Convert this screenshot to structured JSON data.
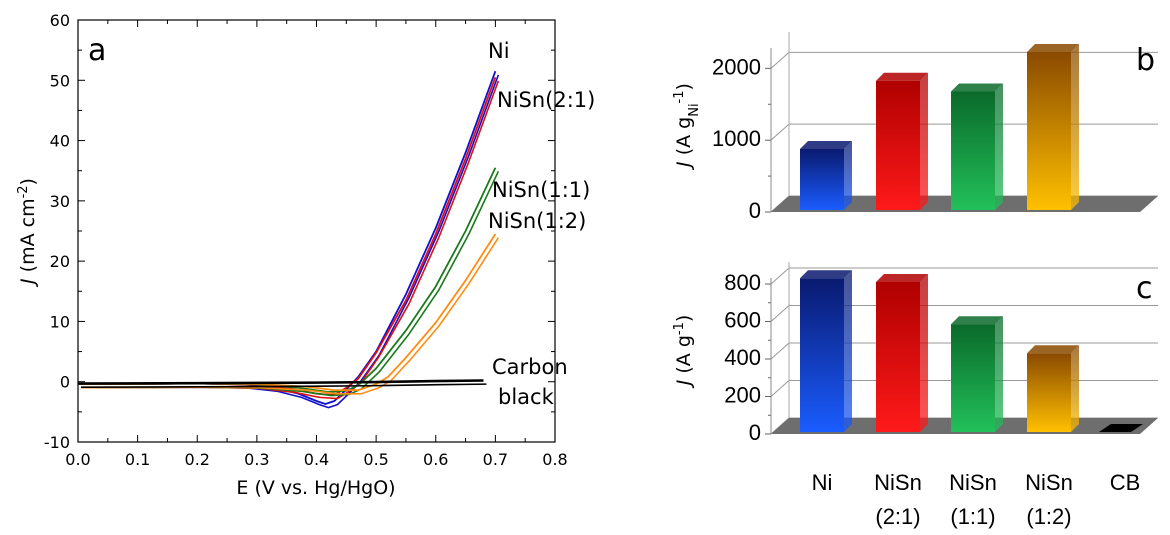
{
  "chart_data": [
    {
      "type": "line",
      "panel_label": "a",
      "xlabel": "E (V vs. Hg/HgO)",
      "ylabel": "J (mA cm-2)",
      "ylabel_italic": "J",
      "ylabel_rest": " (mA cm",
      "ylabel_sup": "-2",
      "ylabel_close": ")",
      "xlim": [
        0.0,
        0.8
      ],
      "ylim": [
        -10,
        60
      ],
      "xticks": [
        "0.0",
        "0.1",
        "0.2",
        "0.3",
        "0.4",
        "0.5",
        "0.6",
        "0.7",
        "0.8"
      ],
      "yticks": [
        "-10",
        "0",
        "10",
        "20",
        "30",
        "40",
        "50",
        "60"
      ],
      "series": [
        {
          "name": "Ni",
          "color": "#1010d0",
          "points": [
            [
              0.0,
              -0.4
            ],
            [
              0.1,
              -0.35
            ],
            [
              0.2,
              -0.3
            ],
            [
              0.28,
              -0.45
            ],
            [
              0.33,
              -1.0
            ],
            [
              0.37,
              -2.0
            ],
            [
              0.4,
              -3.2
            ],
            [
              0.415,
              -3.7
            ],
            [
              0.43,
              -3.2
            ],
            [
              0.45,
              -1.3
            ],
            [
              0.47,
              0.8
            ],
            [
              0.5,
              5.0
            ],
            [
              0.55,
              14.5
            ],
            [
              0.6,
              25.5
            ],
            [
              0.65,
              38.0
            ],
            [
              0.7,
              51.5
            ]
          ]
        },
        {
          "name": "NiSn(2:1)",
          "color": "#e01010",
          "points": [
            [
              0.0,
              -0.4
            ],
            [
              0.1,
              -0.35
            ],
            [
              0.2,
              -0.3
            ],
            [
              0.3,
              -0.5
            ],
            [
              0.36,
              -1.2
            ],
            [
              0.4,
              -2.0
            ],
            [
              0.43,
              -2.2
            ],
            [
              0.45,
              -1.0
            ],
            [
              0.47,
              0.5
            ],
            [
              0.5,
              4.8
            ],
            [
              0.55,
              13.5
            ],
            [
              0.6,
              24.5
            ],
            [
              0.65,
              37.0
            ],
            [
              0.7,
              50.5
            ]
          ]
        },
        {
          "name": "NiSn(1:1)",
          "color": "#1a7a1a",
          "points": [
            [
              0.0,
              -0.4
            ],
            [
              0.1,
              -0.35
            ],
            [
              0.2,
              -0.3
            ],
            [
              0.3,
              -0.45
            ],
            [
              0.37,
              -1.0
            ],
            [
              0.42,
              -1.7
            ],
            [
              0.45,
              -1.5
            ],
            [
              0.47,
              -0.6
            ],
            [
              0.5,
              2.2
            ],
            [
              0.55,
              8.5
            ],
            [
              0.6,
              15.8
            ],
            [
              0.65,
              25.0
            ],
            [
              0.7,
              35.5
            ]
          ]
        },
        {
          "name": "NiSn(1:2)",
          "color": "#ff8c10",
          "points": [
            [
              0.0,
              -0.4
            ],
            [
              0.1,
              -0.35
            ],
            [
              0.2,
              -0.3
            ],
            [
              0.3,
              -0.4
            ],
            [
              0.38,
              -0.8
            ],
            [
              0.43,
              -1.4
            ],
            [
              0.47,
              -1.4
            ],
            [
              0.5,
              -0.4
            ],
            [
              0.52,
              0.8
            ],
            [
              0.55,
              4.0
            ],
            [
              0.6,
              9.8
            ],
            [
              0.65,
              16.8
            ],
            [
              0.7,
              24.5
            ]
          ]
        },
        {
          "name": "Carbon black",
          "color": "#000000",
          "points": [
            [
              0.0,
              -0.3
            ],
            [
              0.2,
              -0.25
            ],
            [
              0.4,
              -0.15
            ],
            [
              0.5,
              -0.05
            ],
            [
              0.6,
              0.1
            ],
            [
              0.68,
              0.2
            ]
          ]
        }
      ],
      "curve_labels": [
        "Ni",
        "NiSn(2:1)",
        "NiSn(1:1)",
        "NiSn(1:2)",
        "Carbon",
        "black"
      ]
    },
    {
      "type": "bar",
      "panel_label": "b",
      "ylabel": "J (A gNi-1)",
      "ylabel_italic": "J",
      "ylabel_rest": " (A g",
      "ylabel_sub": "Ni",
      "ylabel_sup": "-1",
      "ylabel_close": ")",
      "ylim": [
        0,
        2200
      ],
      "yticks": [
        "0",
        "1000",
        "2000"
      ],
      "categories": [
        "Ni",
        "NiSn (2:1)",
        "NiSn (1:1)",
        "NiSn (1:2)"
      ],
      "values": [
        850,
        1800,
        1650,
        2200
      ],
      "colors": [
        [
          "#0a1a70",
          "#1a5cff"
        ],
        [
          "#b00000",
          "#ff1a1a"
        ],
        [
          "#0a6a2a",
          "#22c05a"
        ],
        [
          "#8a4a00",
          "#ffc000"
        ]
      ]
    },
    {
      "type": "bar",
      "panel_label": "c",
      "ylabel": "J (A g-1)",
      "ylabel_italic": "J",
      "ylabel_rest": " (A g",
      "ylabel_sup": "-1",
      "ylabel_close": ")",
      "ylim": [
        0,
        800
      ],
      "yticks": [
        "0",
        "200",
        "400",
        "600",
        "800"
      ],
      "categories": [
        "Ni",
        "NiSn (2:1)",
        "NiSn (1:1)",
        "NiSn (1:2)",
        "CB"
      ],
      "values": [
        820,
        800,
        575,
        420,
        2
      ],
      "colors": [
        [
          "#0a1a70",
          "#1a5cff"
        ],
        [
          "#b00000",
          "#ff1a1a"
        ],
        [
          "#0a6a2a",
          "#22c05a"
        ],
        [
          "#8a4a00",
          "#ffc000"
        ],
        [
          "#000000",
          "#000000"
        ]
      ]
    }
  ],
  "category_labels": [
    {
      "line1": "Ni",
      "line2": ""
    },
    {
      "line1": "NiSn",
      "line2": "(2:1)"
    },
    {
      "line1": "NiSn",
      "line2": "(1:1)"
    },
    {
      "line1": "NiSn",
      "line2": "(1:2)"
    },
    {
      "line1": "CB",
      "line2": ""
    }
  ]
}
